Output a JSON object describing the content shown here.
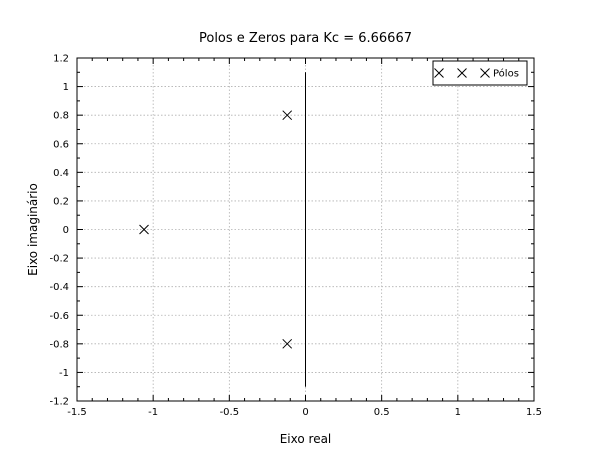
{
  "chart_data": {
    "type": "scatter",
    "title": "Polos e Zeros para Kc = 6.66667",
    "xlabel": "Eixo real",
    "ylabel": "Eixo imaginário",
    "xlim": [
      -1.5,
      1.5
    ],
    "ylim": [
      -1.2,
      1.2
    ],
    "grid": true,
    "x_ticks": [
      "-1.5",
      "-1",
      "-0.5",
      "0",
      "0.5",
      "1",
      "1.5"
    ],
    "y_ticks": [
      "-1.2",
      "-1",
      "-0.8",
      "-0.6",
      "-0.4",
      "-0.2",
      "0",
      "0.2",
      "0.4",
      "0.6",
      "0.8",
      "1",
      "1.2"
    ],
    "series": [
      {
        "name": "Pólos",
        "marker": "x",
        "color": "#000000",
        "points": [
          {
            "x": -1.06,
            "y": 0.0
          },
          {
            "x": -0.12,
            "y": 0.8
          },
          {
            "x": -0.12,
            "y": -0.8
          }
        ]
      }
    ],
    "imag_axis_line": {
      "x": 0,
      "y_from": -1.1,
      "y_to": 1.1
    },
    "legend": {
      "position": "top-right",
      "entries": [
        "Pólos"
      ]
    }
  }
}
